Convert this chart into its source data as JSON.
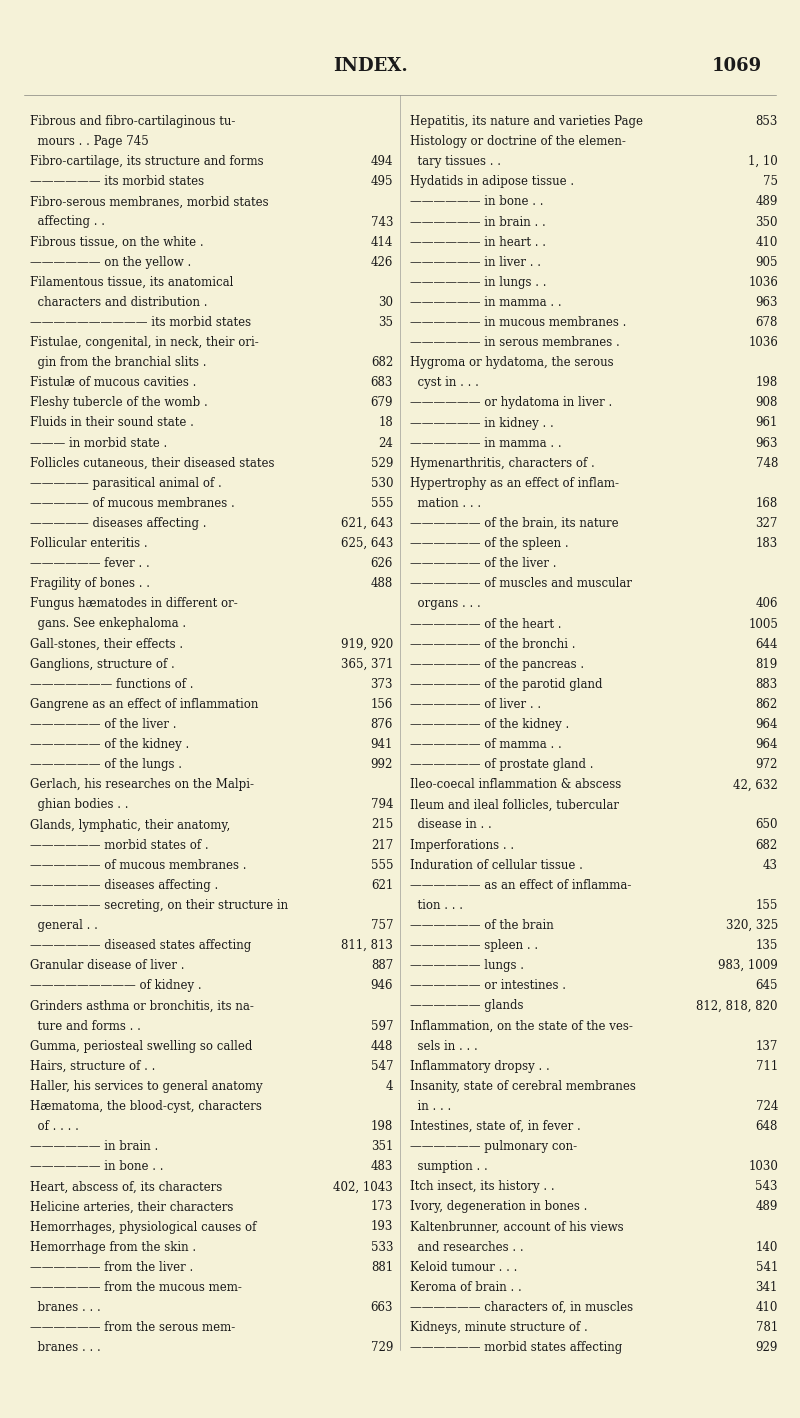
{
  "bg_color": "#f5f2d8",
  "text_color": "#1a1a1a",
  "title": "INDEX.",
  "page_num": "1069",
  "left_column": [
    [
      "Fibrous and fibro-cartilaginous tu-",
      ""
    ],
    [
      "  mours . . Page 745",
      ""
    ],
    [
      "Fibro-cartilage, its structure and forms",
      "494"
    ],
    [
      "—————— its morbid states",
      "495"
    ],
    [
      "Fibro-serous membranes, morbid states",
      ""
    ],
    [
      "  affecting . .",
      "743"
    ],
    [
      "Fibrous tissue, on the white .",
      "414"
    ],
    [
      "—————— on the yellow .",
      "426"
    ],
    [
      "Filamentous tissue, its anatomical",
      ""
    ],
    [
      "  characters and distribution .",
      "30"
    ],
    [
      "—————————— its morbid states",
      "35"
    ],
    [
      "Fistulae, congenital, in neck, their ori-",
      ""
    ],
    [
      "  gin from the branchial slits .",
      "682"
    ],
    [
      "Fistulæ of mucous cavities .",
      "683"
    ],
    [
      "Fleshy tubercle of the womb .",
      "679"
    ],
    [
      "Fluids in their sound state .",
      "18"
    ],
    [
      "——— in morbid state .",
      "24"
    ],
    [
      "Follicles cutaneous, their diseased states",
      "529"
    ],
    [
      "————— parasitical animal of .",
      "530"
    ],
    [
      "————— of mucous membranes .",
      "555"
    ],
    [
      "————— diseases affecting .",
      "621, 643"
    ],
    [
      "Follicular enteritis .",
      "625, 643"
    ],
    [
      "—————— fever . .",
      "626"
    ],
    [
      "Fragility of bones . .",
      "488"
    ],
    [
      "Fungus hæmatodes in different or-",
      ""
    ],
    [
      "  gans. See enkephaloma .",
      ""
    ],
    [
      "Gall-stones, their effects .",
      "919, 920"
    ],
    [
      "Ganglions, structure of .",
      "365, 371"
    ],
    [
      "——————— functions of .",
      "373"
    ],
    [
      "Gangrene as an effect of inflammation",
      "156"
    ],
    [
      "—————— of the liver .",
      "876"
    ],
    [
      "—————— of the kidney .",
      "941"
    ],
    [
      "—————— of the lungs .",
      "992"
    ],
    [
      "Gerlach, his researches on the Malpi-",
      ""
    ],
    [
      "  ghian bodies . .",
      "794"
    ],
    [
      "Glands, lymphatic, their anatomy,",
      "215"
    ],
    [
      "—————— morbid states of .",
      "217"
    ],
    [
      "—————— of mucous membranes .",
      "555"
    ],
    [
      "—————— diseases affecting .",
      "621"
    ],
    [
      "—————— secreting, on their structure in",
      ""
    ],
    [
      "  general . .",
      "757"
    ],
    [
      "—————— diseased states affecting",
      "811, 813"
    ],
    [
      "Granular disease of liver .",
      "887"
    ],
    [
      "————————— of kidney .",
      "946"
    ],
    [
      "Grinders asthma or bronchitis, its na-",
      ""
    ],
    [
      "  ture and forms . .",
      "597"
    ],
    [
      "Gumma, periosteal swelling so called",
      "448"
    ],
    [
      "Hairs, structure of . .",
      "547"
    ],
    [
      "Haller, his services to general anatomy",
      "4"
    ],
    [
      "Hæmatoma, the blood-cyst, characters",
      ""
    ],
    [
      "  of . . . .",
      "198"
    ],
    [
      "—————— in brain .",
      "351"
    ],
    [
      "—————— in bone . .",
      "483"
    ],
    [
      "Heart, abscess of, its characters",
      "402, 1043"
    ],
    [
      "Helicine arteries, their characters",
      "173"
    ],
    [
      "Hemorrhages, physiological causes of",
      "193"
    ],
    [
      "Hemorrhage from the skin .",
      "533"
    ],
    [
      "—————— from the liver .",
      "881"
    ],
    [
      "—————— from the mucous mem-",
      ""
    ],
    [
      "  branes . . .",
      "663"
    ],
    [
      "—————— from the serous mem-",
      ""
    ],
    [
      "  branes . . .",
      "729"
    ]
  ],
  "right_column": [
    [
      "Hepatitis, its nature and varieties Page",
      "853"
    ],
    [
      "Histology or doctrine of the elemen-",
      ""
    ],
    [
      "  tary tissues . .",
      "1, 10"
    ],
    [
      "Hydatids in adipose tissue .",
      "75"
    ],
    [
      "—————— in bone . .",
      "489"
    ],
    [
      "—————— in brain . .",
      "350"
    ],
    [
      "—————— in heart . .",
      "410"
    ],
    [
      "—————— in liver . .",
      "905"
    ],
    [
      "—————— in lungs . .",
      "1036"
    ],
    [
      "—————— in mamma . .",
      "963"
    ],
    [
      "—————— in mucous membranes .",
      "678"
    ],
    [
      "—————— in serous membranes .",
      "1036"
    ],
    [
      "Hygroma or hydatoma, the serous",
      ""
    ],
    [
      "  cyst in . . .",
      "198"
    ],
    [
      "—————— or hydatoma in liver .",
      "908"
    ],
    [
      "—————— in kidney . .",
      "961"
    ],
    [
      "—————— in mamma . .",
      "963"
    ],
    [
      "Hymenarthritis, characters of .",
      "748"
    ],
    [
      "Hypertrophy as an effect of inflam-",
      ""
    ],
    [
      "  mation . . .",
      "168"
    ],
    [
      "—————— of the brain, its nature",
      "327"
    ],
    [
      "—————— of the spleen .",
      "183"
    ],
    [
      "—————— of the liver .",
      ""
    ],
    [
      "—————— of muscles and muscular",
      ""
    ],
    [
      "  organs . . .",
      "406"
    ],
    [
      "—————— of the heart .",
      "1005"
    ],
    [
      "—————— of the bronchi .",
      "644"
    ],
    [
      "—————— of the pancreas .",
      "819"
    ],
    [
      "—————— of the parotid gland",
      "883"
    ],
    [
      "—————— of liver . .",
      "862"
    ],
    [
      "—————— of the kidney .",
      "964"
    ],
    [
      "—————— of mamma . .",
      "964"
    ],
    [
      "—————— of prostate gland .",
      "972"
    ],
    [
      "Ileo-coecal inflammation & abscess",
      "42, 632"
    ],
    [
      "Ileum and ileal follicles, tubercular",
      ""
    ],
    [
      "  disease in . .",
      "650"
    ],
    [
      "Imperforations . .",
      "682"
    ],
    [
      "Induration of cellular tissue .",
      "43"
    ],
    [
      "—————— as an effect of inflamma-",
      ""
    ],
    [
      "  tion . . .",
      "155"
    ],
    [
      "—————— of the brain",
      "320, 325"
    ],
    [
      "—————— spleen . .",
      "135"
    ],
    [
      "—————— lungs .",
      "983, 1009"
    ],
    [
      "—————— or intestines .",
      "645"
    ],
    [
      "—————— glands",
      "812, 818, 820"
    ],
    [
      "Inflammation, on the state of the ves-",
      ""
    ],
    [
      "  sels in . . .",
      "137"
    ],
    [
      "Inflammatory dropsy . .",
      "711"
    ],
    [
      "Insanity, state of cerebral membranes",
      ""
    ],
    [
      "  in . . .",
      "724"
    ],
    [
      "Intestines, state of, in fever .",
      "648"
    ],
    [
      "—————— pulmonary con-",
      ""
    ],
    [
      "  sumption . .",
      "1030"
    ],
    [
      "Itch insect, its history . .",
      "543"
    ],
    [
      "Ivory, degeneration in bones .",
      "489"
    ],
    [
      "Kaltenbrunner, account of his views",
      ""
    ],
    [
      "  and researches . .",
      "140"
    ],
    [
      "Keloid tumour . . .",
      "541"
    ],
    [
      "Keroma of brain . .",
      "341"
    ],
    [
      "—————— characters of, in muscles",
      "410"
    ],
    [
      "Kidneys, minute structure of .",
      "781"
    ],
    [
      "—————— morbid states affecting",
      "929"
    ]
  ]
}
